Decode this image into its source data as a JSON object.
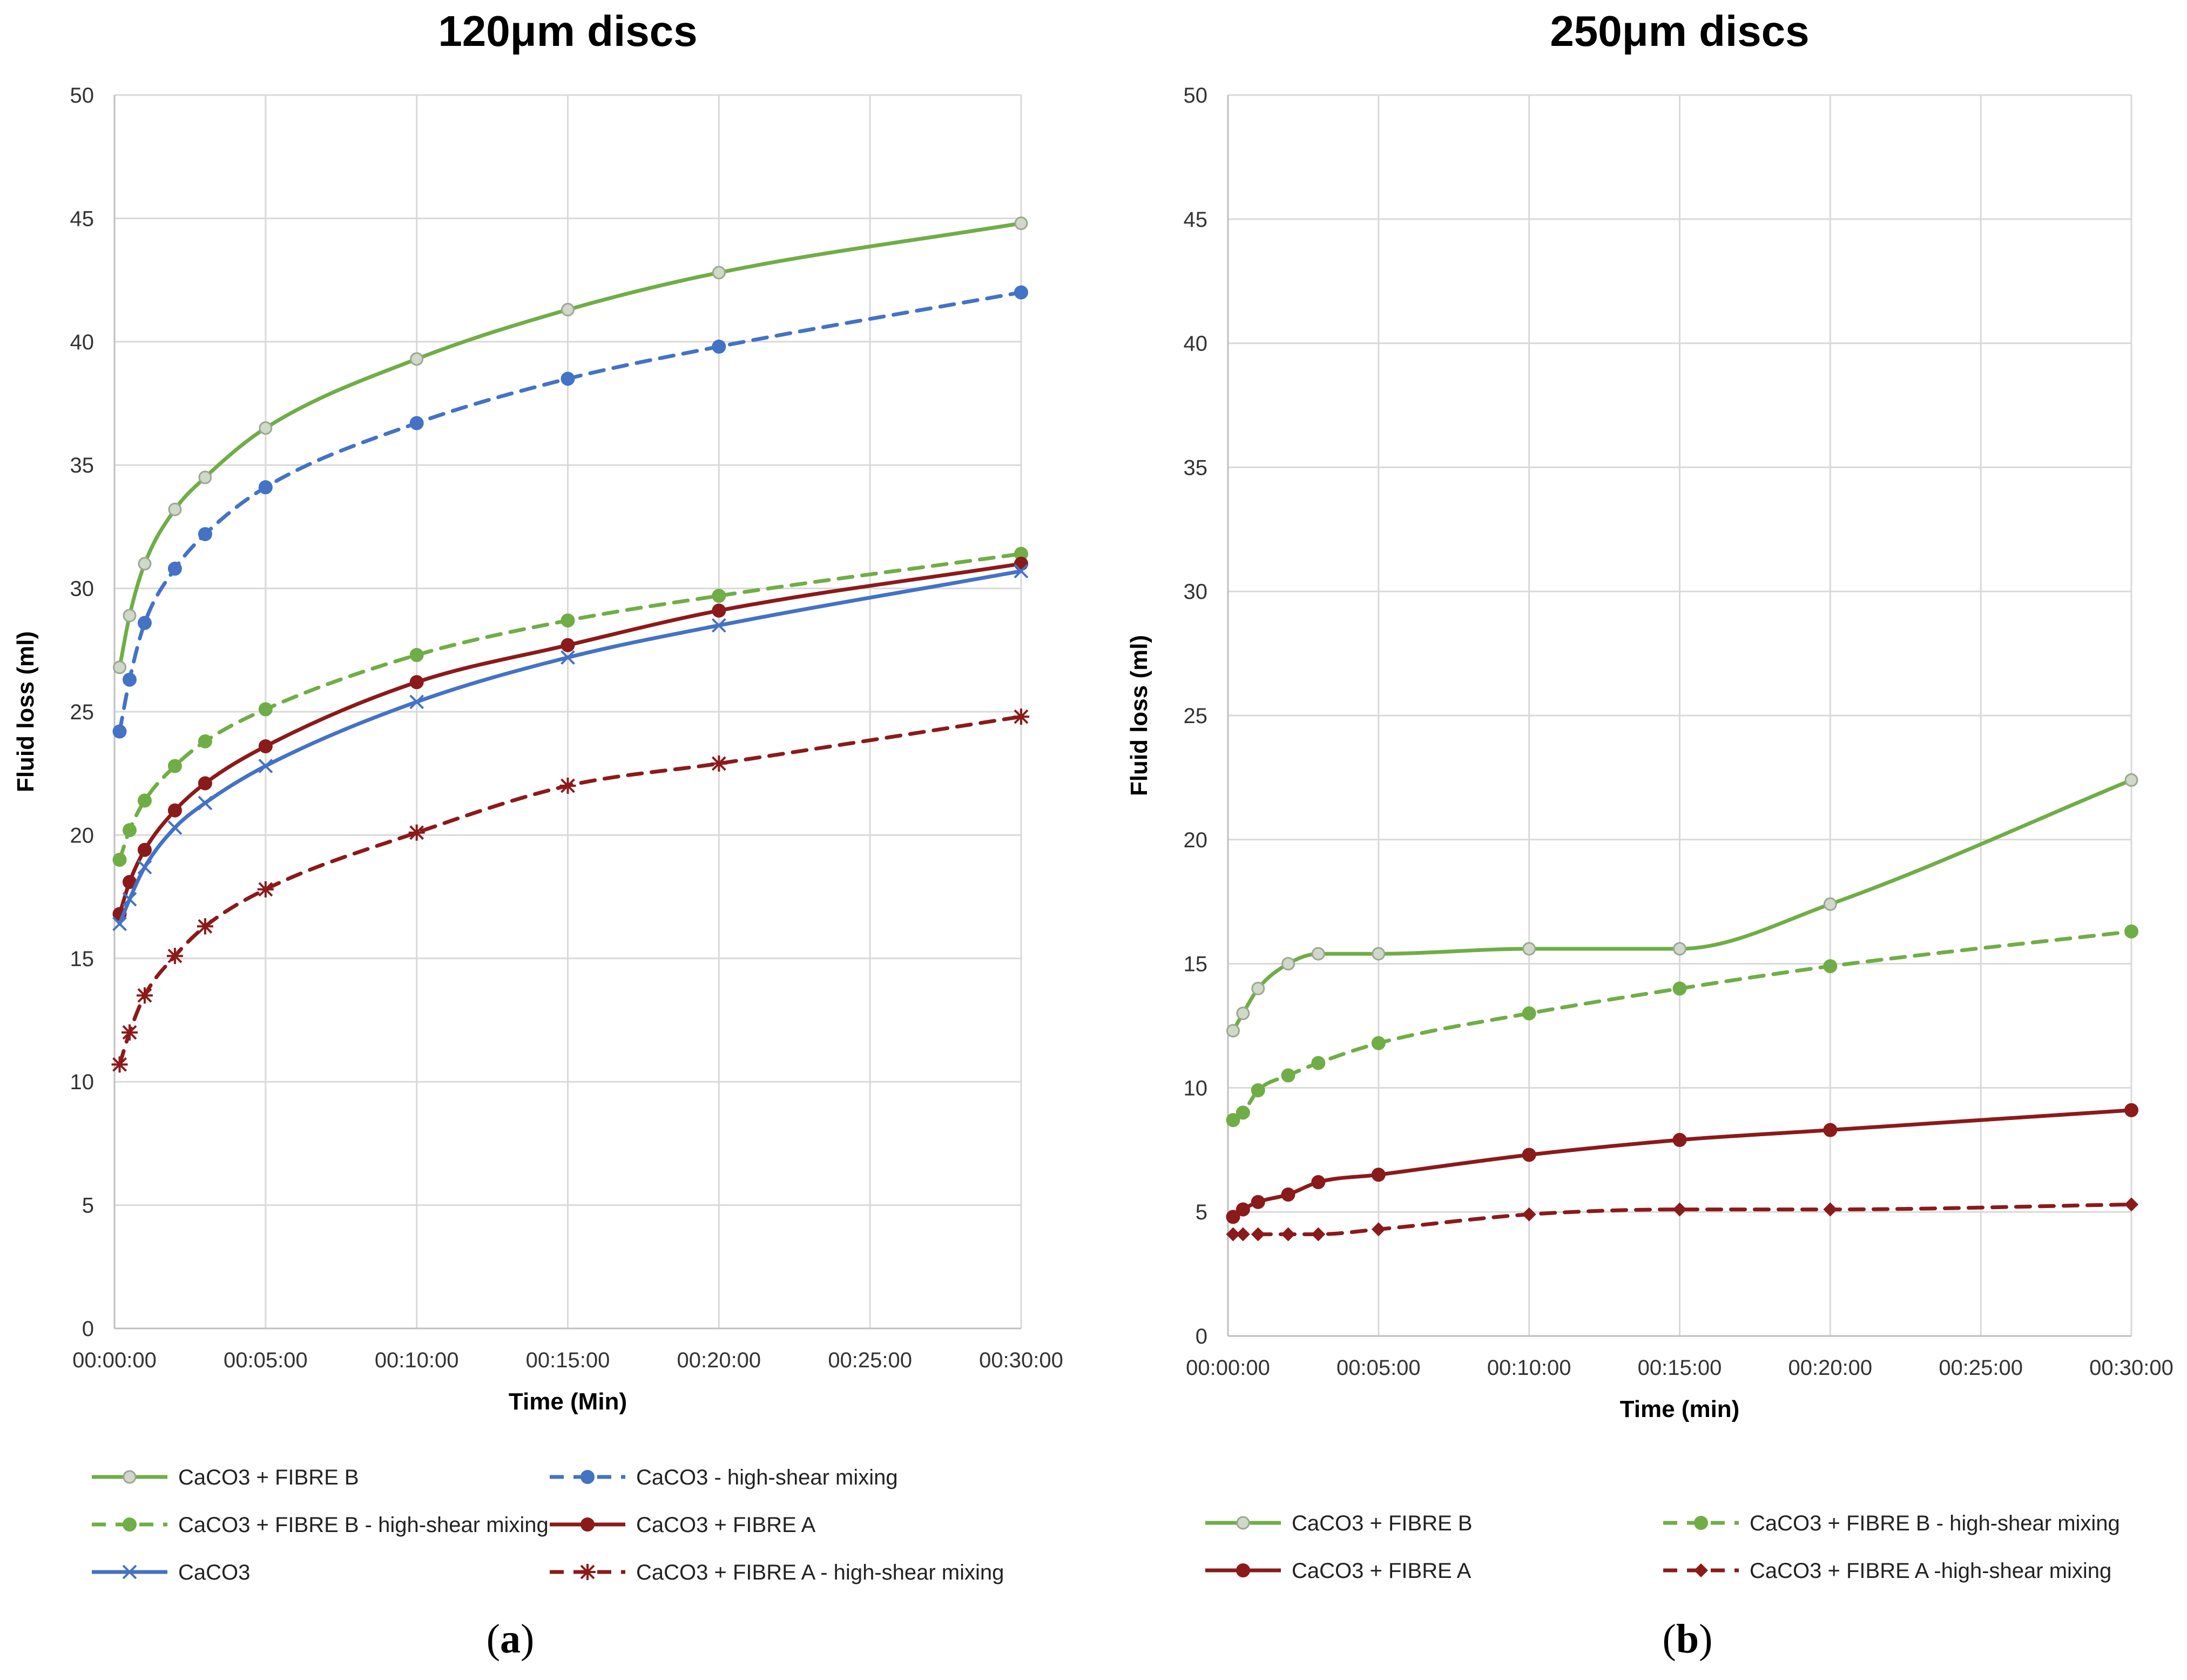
{
  "colors": {
    "green": "#70ad47",
    "green_marker_light": "#c9d4c0",
    "blue": "#4472c4",
    "blue_marker": "#5b9bd5",
    "dark_red": "#8b1a1a"
  },
  "chart_data": [
    {
      "type": "line",
      "panel": "a",
      "subfig_label": "a",
      "title": "120μm discs",
      "xlabel": "Time (Min)",
      "ylabel": "Fluid loss (ml)",
      "ylim": [
        0,
        50
      ],
      "yticks": [
        "0",
        "5",
        "10",
        "15",
        "20",
        "25",
        "30",
        "35",
        "40",
        "45",
        "50"
      ],
      "xlim": [
        0,
        30
      ],
      "xticks": [
        "00:00:00",
        "00:05:00",
        "00:10:00",
        "00:15:00",
        "00:20:00",
        "00:25:00",
        "00:30:00"
      ],
      "grid": true,
      "legend_position": "bottom",
      "series": [
        {
          "name": "CaCO3 + FIBRE B",
          "color": "#70ad47",
          "dash": "solid",
          "marker": "circle-light",
          "x": [
            0.17,
            0.5,
            1,
            2,
            3,
            5,
            10,
            15,
            20,
            30
          ],
          "y": [
            26.8,
            28.9,
            31.0,
            33.2,
            34.5,
            36.5,
            39.3,
            41.3,
            42.8,
            44.8
          ]
        },
        {
          "name": "CaCO3 - high-shear mixing",
          "color": "#4472c4",
          "dash": "dashed",
          "marker": "circle",
          "x": [
            0.17,
            0.5,
            1,
            2,
            3,
            5,
            10,
            15,
            20,
            30
          ],
          "y": [
            24.2,
            26.3,
            28.6,
            30.8,
            32.2,
            34.1,
            36.7,
            38.5,
            39.8,
            42.0
          ]
        },
        {
          "name": "CaCO3 + FIBRE B - high-shear mixing",
          "color": "#70ad47",
          "dash": "dashed",
          "marker": "circle",
          "x": [
            0.17,
            0.5,
            1,
            2,
            3,
            5,
            10,
            15,
            20,
            30
          ],
          "y": [
            19.0,
            20.2,
            21.4,
            22.8,
            23.8,
            25.1,
            27.3,
            28.7,
            29.7,
            31.4
          ]
        },
        {
          "name": "CaCO3 + FIBRE A",
          "color": "#8b1a1a",
          "dash": "solid",
          "marker": "circle",
          "x": [
            0.17,
            0.5,
            1,
            2,
            3,
            5,
            10,
            15,
            20,
            30
          ],
          "y": [
            16.8,
            18.1,
            19.4,
            21.0,
            22.1,
            23.6,
            26.2,
            27.7,
            29.1,
            31.0
          ]
        },
        {
          "name": "CaCO3",
          "color": "#4472c4",
          "dash": "solid",
          "marker": "x",
          "x": [
            0.17,
            0.5,
            1,
            2,
            3,
            5,
            10,
            15,
            20,
            30
          ],
          "y": [
            16.4,
            17.4,
            18.7,
            20.3,
            21.3,
            22.8,
            25.4,
            27.2,
            28.5,
            30.7
          ]
        },
        {
          "name": "CaCO3 + FIBRE A - high-shear mixing",
          "color": "#8b1a1a",
          "dash": "dashed",
          "marker": "star",
          "x": [
            0.17,
            0.5,
            1,
            2,
            3,
            5,
            10,
            15,
            20,
            30
          ],
          "y": [
            10.7,
            12.0,
            13.5,
            15.1,
            16.3,
            17.8,
            20.1,
            22.0,
            22.9,
            24.8
          ]
        }
      ]
    },
    {
      "type": "line",
      "panel": "b",
      "subfig_label": "b",
      "title": "250μm discs",
      "xlabel": "Time (min)",
      "ylabel": "Fluid loss (ml)",
      "ylim": [
        0,
        50
      ],
      "yticks": [
        "0",
        "5",
        "10",
        "15",
        "20",
        "25",
        "30",
        "35",
        "40",
        "45",
        "50"
      ],
      "xlim": [
        0,
        30
      ],
      "xticks": [
        "00:00:00",
        "00:05:00",
        "00:10:00",
        "00:15:00",
        "00:20:00",
        "00:25:00",
        "00:30:00"
      ],
      "grid": true,
      "legend_position": "bottom",
      "series": [
        {
          "name": "CaCO3 + FIBRE B",
          "color": "#70ad47",
          "dash": "solid",
          "marker": "circle-light",
          "x": [
            0.17,
            0.5,
            1,
            2,
            3,
            5,
            10,
            15,
            20,
            30
          ],
          "y": [
            12.3,
            13.0,
            14.0,
            15.0,
            15.4,
            15.4,
            15.6,
            15.6,
            17.4,
            22.4
          ]
        },
        {
          "name": "CaCO3 + FIBRE B - high-shear mixing",
          "color": "#70ad47",
          "dash": "dashed",
          "marker": "circle",
          "x": [
            0.17,
            0.5,
            1,
            2,
            3,
            5,
            10,
            15,
            20,
            30
          ],
          "y": [
            8.7,
            9.0,
            9.9,
            10.5,
            11.0,
            11.8,
            13.0,
            14.0,
            14.9,
            16.3
          ]
        },
        {
          "name": "CaCO3 + FIBRE A",
          "color": "#8b1a1a",
          "dash": "solid",
          "marker": "circle",
          "x": [
            0.17,
            0.5,
            1,
            2,
            3,
            5,
            10,
            15,
            20,
            30
          ],
          "y": [
            4.8,
            5.1,
            5.4,
            5.7,
            6.2,
            6.5,
            7.3,
            7.9,
            8.3,
            9.1
          ]
        },
        {
          "name": "CaCO3 + FIBRE A -high-shear mixing",
          "color": "#8b1a1a",
          "dash": "dashed",
          "marker": "diamond",
          "x": [
            0.17,
            0.5,
            1,
            2,
            3,
            5,
            10,
            15,
            20,
            30
          ],
          "y": [
            4.1,
            4.1,
            4.1,
            4.1,
            4.1,
            4.3,
            4.9,
            5.1,
            5.1,
            5.3
          ]
        }
      ]
    }
  ]
}
